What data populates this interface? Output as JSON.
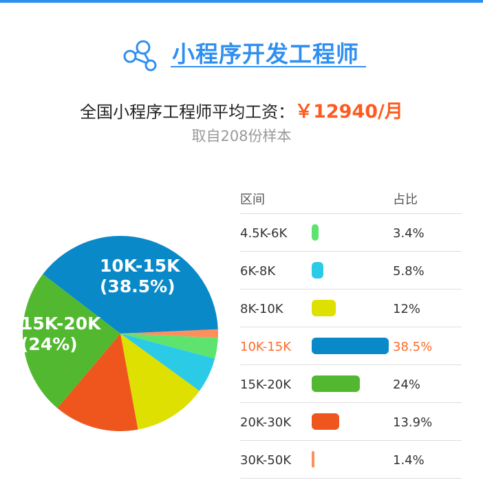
{
  "header": {
    "title": "小程序开发工程师"
  },
  "salary": {
    "prefix": "全国小程序工程师平均工资：",
    "value": "￥12940/月",
    "sample": "取自208份样本"
  },
  "colors": {
    "accent": "#2f8ff0",
    "highlight": "#ff6a2a"
  },
  "chart_data": {
    "type": "pie",
    "columns": [
      "区间",
      "占比"
    ],
    "categories": [
      "4.5K-6K",
      "6K-8K",
      "8K-10K",
      "10K-15K",
      "15K-20K",
      "20K-30K",
      "30K-50K"
    ],
    "values": [
      3.4,
      5.8,
      12,
      38.5,
      24,
      13.9,
      1.4
    ],
    "percent_labels": [
      "3.4%",
      "5.8%",
      "12%",
      "38.5%",
      "24%",
      "13.9%",
      "1.4%"
    ],
    "colors": [
      "#5fe36f",
      "#2bcbe7",
      "#dde000",
      "#0a89c9",
      "#52b830",
      "#ef561e",
      "#ff8f5a"
    ],
    "highlighted": "10K-15K",
    "pie_labels": [
      {
        "line1": "10K-15K",
        "line2": "(38.5%)"
      },
      {
        "line1": "15K-20K",
        "line2": "(24%)"
      }
    ]
  }
}
